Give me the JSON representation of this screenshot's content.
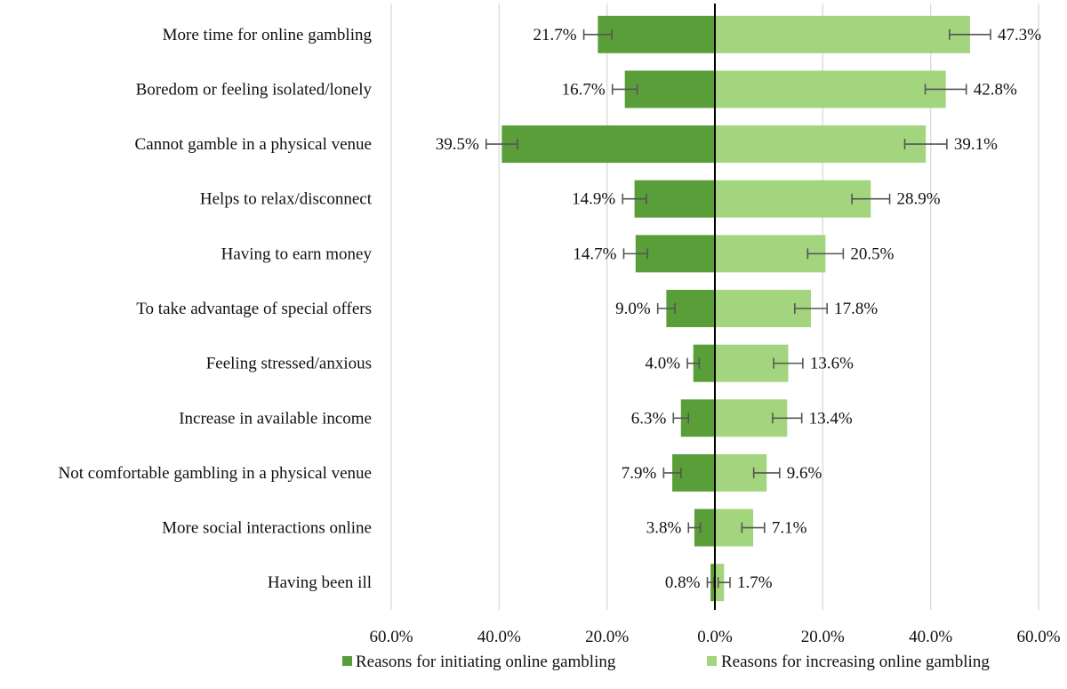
{
  "chart_data": {
    "type": "bar",
    "orientation": "horizontal-diverging",
    "categories": [
      "More time for online gambling",
      "Boredom or feeling isolated/lonely",
      "Cannot gamble in a physical venue",
      "Helps to relax/disconnect",
      "Having to earn money",
      "To take advantage of special offers",
      "Feeling stressed/anxious",
      "Increase in available income",
      "Not comfortable gambling in a physical venue",
      "More social interactions online",
      "Having been ill"
    ],
    "series": [
      {
        "name": "Reasons for initiating online gambling",
        "color": "#5a9e3a",
        "direction": "left",
        "values": [
          21.7,
          16.7,
          39.5,
          14.9,
          14.7,
          9.0,
          4.0,
          6.3,
          7.9,
          3.8,
          0.8
        ],
        "labels": [
          "21.7%",
          "16.7%",
          "39.5%",
          "14.9%",
          "14.7%",
          "9.0%",
          "4.0%",
          "6.3%",
          "7.9%",
          "3.8%",
          "0.8%"
        ],
        "error_margin": [
          2.6,
          2.3,
          2.9,
          2.2,
          2.2,
          1.6,
          1.1,
          1.4,
          1.6,
          1.1,
          0.6
        ]
      },
      {
        "name": "Reasons for increasing online gambling",
        "color": "#a3d47e",
        "direction": "right",
        "values": [
          47.3,
          42.8,
          39.1,
          28.9,
          20.5,
          17.8,
          13.6,
          13.4,
          9.6,
          7.1,
          1.7
        ],
        "labels": [
          "47.3%",
          "42.8%",
          "39.1%",
          "28.9%",
          "20.5%",
          "17.8%",
          "13.6%",
          "13.4%",
          "9.6%",
          "7.1%",
          "1.7%"
        ],
        "error_margin": [
          3.8,
          3.8,
          3.9,
          3.5,
          3.3,
          3.0,
          2.7,
          2.7,
          2.4,
          2.1,
          1.1
        ]
      }
    ],
    "xlim": [
      -60,
      60
    ],
    "ticks": [
      -60,
      -40,
      -20,
      0,
      20,
      40,
      60
    ],
    "tick_labels": [
      "60.0%",
      "40.0%",
      "20.0%",
      "0.0%",
      "20.0%",
      "40.0%",
      "60.0%"
    ],
    "grid": true,
    "legend_position": "bottom",
    "title": "",
    "xlabel": "",
    "ylabel": ""
  }
}
